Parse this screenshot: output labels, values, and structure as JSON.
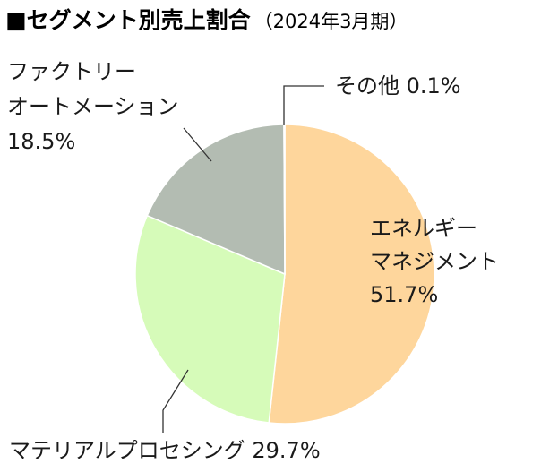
{
  "chart_data": {
    "type": "pie",
    "title": "■セグメント別売上割合",
    "subtitle": "（2024年3月期）",
    "slices": [
      {
        "name": "エネルギーマネジメント",
        "value": 51.7,
        "value_label": "51.7%",
        "color": "#fed69c",
        "label_lines": [
          "エネルギー",
          "マネジメント",
          "51.7%"
        ]
      },
      {
        "name": "マテリアルプロセシング",
        "value": 29.7,
        "value_label": "29.7%",
        "color": "#d6fbb9",
        "label_lines": [
          "マテリアルプロセシング 29.7%"
        ]
      },
      {
        "name": "ファクトリーオートメーション",
        "value": 18.5,
        "value_label": "18.5%",
        "color": "#b3bcb2",
        "label_lines": [
          "ファクトリー",
          "オートメーション",
          "18.5%"
        ]
      },
      {
        "name": "その他",
        "value": 0.1,
        "value_label": "0.1%",
        "color": "#9aa09a",
        "label_lines": [
          "その他 0.1%"
        ]
      }
    ]
  }
}
